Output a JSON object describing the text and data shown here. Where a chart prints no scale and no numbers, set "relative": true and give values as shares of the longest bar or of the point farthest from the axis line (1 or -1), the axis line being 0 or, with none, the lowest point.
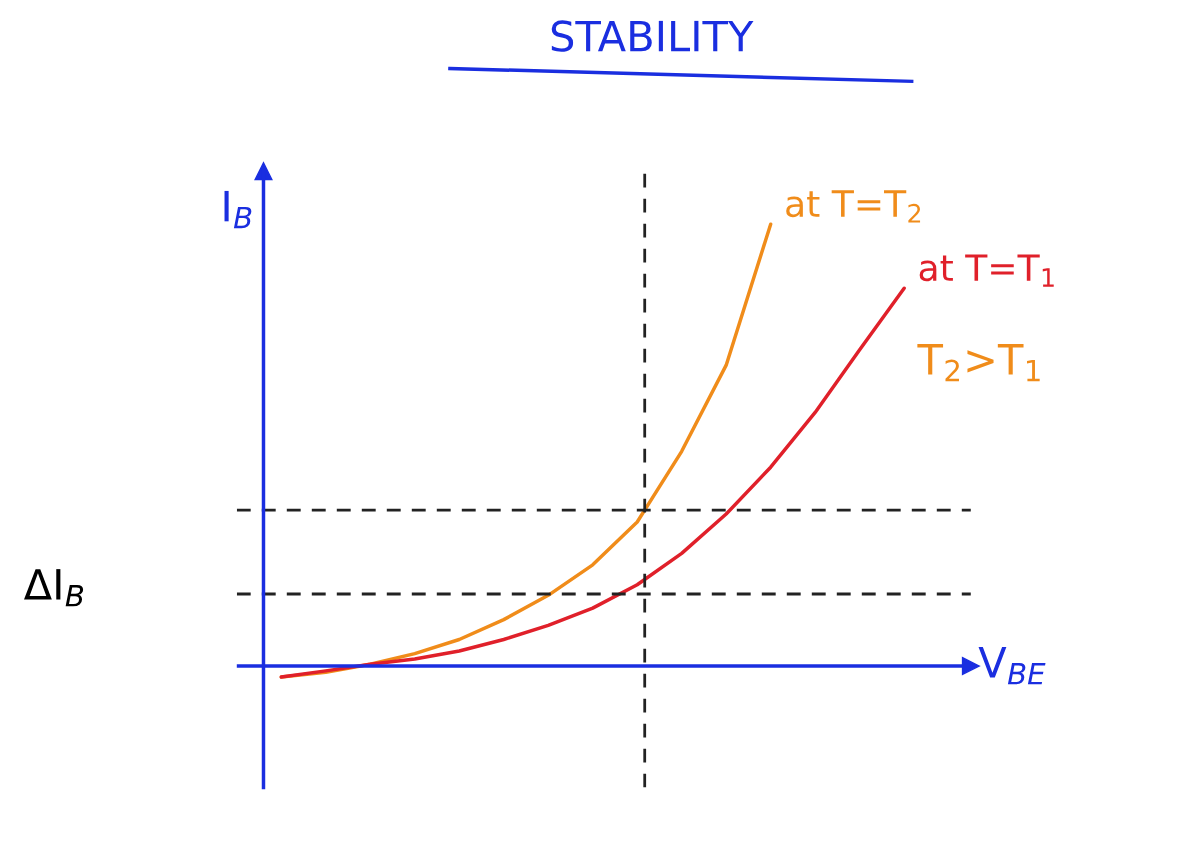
{
  "chart_data": {
    "type": "line",
    "relative": true,
    "title": "STABILITY",
    "xlabel": "V$_{BE}$",
    "ylabel": "I$_{B}$",
    "categories": [
      null,
      null,
      null,
      null,
      null,
      null,
      null,
      null,
      null,
      null,
      null,
      null,
      null,
      null,
      null
    ],
    "series": [
      {
        "name": "at T=T$_{2}$",
        "color": "#f08c1a",
        "values": [
          -0.025,
          -0.014,
          0.004,
          0.028,
          0.06,
          0.105,
          0.16,
          0.229,
          0.326,
          0.486,
          0.681,
          1.0,
          null,
          null,
          null
        ]
      },
      {
        "name": "at T=T$_{1}$",
        "color": "#e0202a",
        "values": [
          -0.025,
          -0.011,
          0.004,
          0.016,
          0.034,
          0.06,
          0.092,
          0.131,
          0.184,
          0.255,
          0.344,
          0.45,
          0.574,
          0.716,
          0.855
        ]
      }
    ],
    "ref_lines": [
      {
        "axis": "y",
        "value": 0.353,
        "color": "#222222",
        "line_style": "dashed"
      },
      {
        "axis": "y",
        "value": 0.163,
        "color": "#222222",
        "line_style": "dashed"
      },
      {
        "axis": "y",
        "value": 0,
        "color": "#1a2ee0",
        "line_style": "solid"
      }
    ],
    "annotations": [
      "ΔI$_{B}$",
      "T$_{2}$>T$_{1}$"
    ],
    "legend": false
  }
}
